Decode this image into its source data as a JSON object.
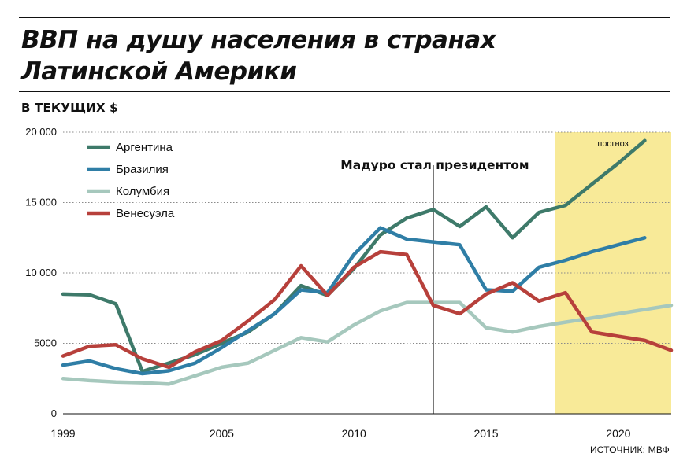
{
  "header": {
    "title_line1": "ВВП на душу населения в странах",
    "title_line2": "Латинской Америки",
    "subtitle": "В ТЕКУЩИХ $"
  },
  "source": "ИСТОЧНИК: МВФ",
  "chart_data": {
    "type": "line",
    "title": "ВВП на душу населения в странах Латинской Америки",
    "ylabel": "В ТЕКУЩИХ $",
    "xlabel": "",
    "x": [
      1999,
      2000,
      2001,
      2002,
      2003,
      2004,
      2005,
      2006,
      2007,
      2008,
      2009,
      2010,
      2011,
      2012,
      2013,
      2014,
      2015,
      2016,
      2017,
      2018,
      2019,
      2020,
      2021,
      2022
    ],
    "xlim": [
      1999,
      2022
    ],
    "ylim": [
      0,
      20000
    ],
    "xticks": [
      1999,
      2005,
      2010,
      2015,
      2020
    ],
    "xtick_labels": [
      "1999",
      "2005",
      "2010",
      "2015",
      "2020"
    ],
    "yticks": [
      0,
      5000,
      10000,
      15000,
      20000
    ],
    "ytick_labels": [
      "0",
      "5000",
      "10 000",
      "15 000",
      "20 000"
    ],
    "grid": "horizontal dotted",
    "legend_position": "top-left",
    "series": [
      {
        "name": "Аргентина",
        "color": "#3e7a6a",
        "values": [
          8500,
          8450,
          7800,
          3000,
          3600,
          4200,
          5000,
          5800,
          7100,
          9100,
          8400,
          10300,
          12700,
          13900,
          14500,
          13300,
          14700,
          12500,
          14300,
          14800,
          16300,
          17800,
          19400,
          null
        ]
      },
      {
        "name": "Бразилия",
        "color": "#2f7ea6",
        "values": [
          3450,
          3750,
          3200,
          2850,
          3050,
          3600,
          4700,
          5900,
          7100,
          8800,
          8600,
          11300,
          13200,
          12400,
          12200,
          12000,
          8800,
          8700,
          10400,
          10900,
          11500,
          12000,
          12500,
          null
        ]
      },
      {
        "name": "Колумбия",
        "color": "#a6c8bd",
        "values": [
          2500,
          2350,
          2250,
          2200,
          2100,
          2700,
          3300,
          3600,
          4500,
          5400,
          5100,
          6300,
          7300,
          7900,
          7900,
          7900,
          6100,
          5800,
          6200,
          6500,
          6800,
          7100,
          7400,
          7700
        ]
      },
      {
        "name": "Венесуэла",
        "color": "#b7403b",
        "values": [
          4100,
          4800,
          4900,
          3900,
          3300,
          4400,
          5200,
          6600,
          8100,
          10500,
          8400,
          10400,
          11500,
          11300,
          7700,
          7100,
          8500,
          9300,
          8000,
          8600,
          5800,
          5500,
          5200,
          4500
        ]
      }
    ],
    "annotations": [
      {
        "text": "Мадуро стал президентом",
        "x": 2013
      },
      {
        "text": "прогноз",
        "x_range": [
          2017.6,
          2022
        ]
      }
    ]
  }
}
